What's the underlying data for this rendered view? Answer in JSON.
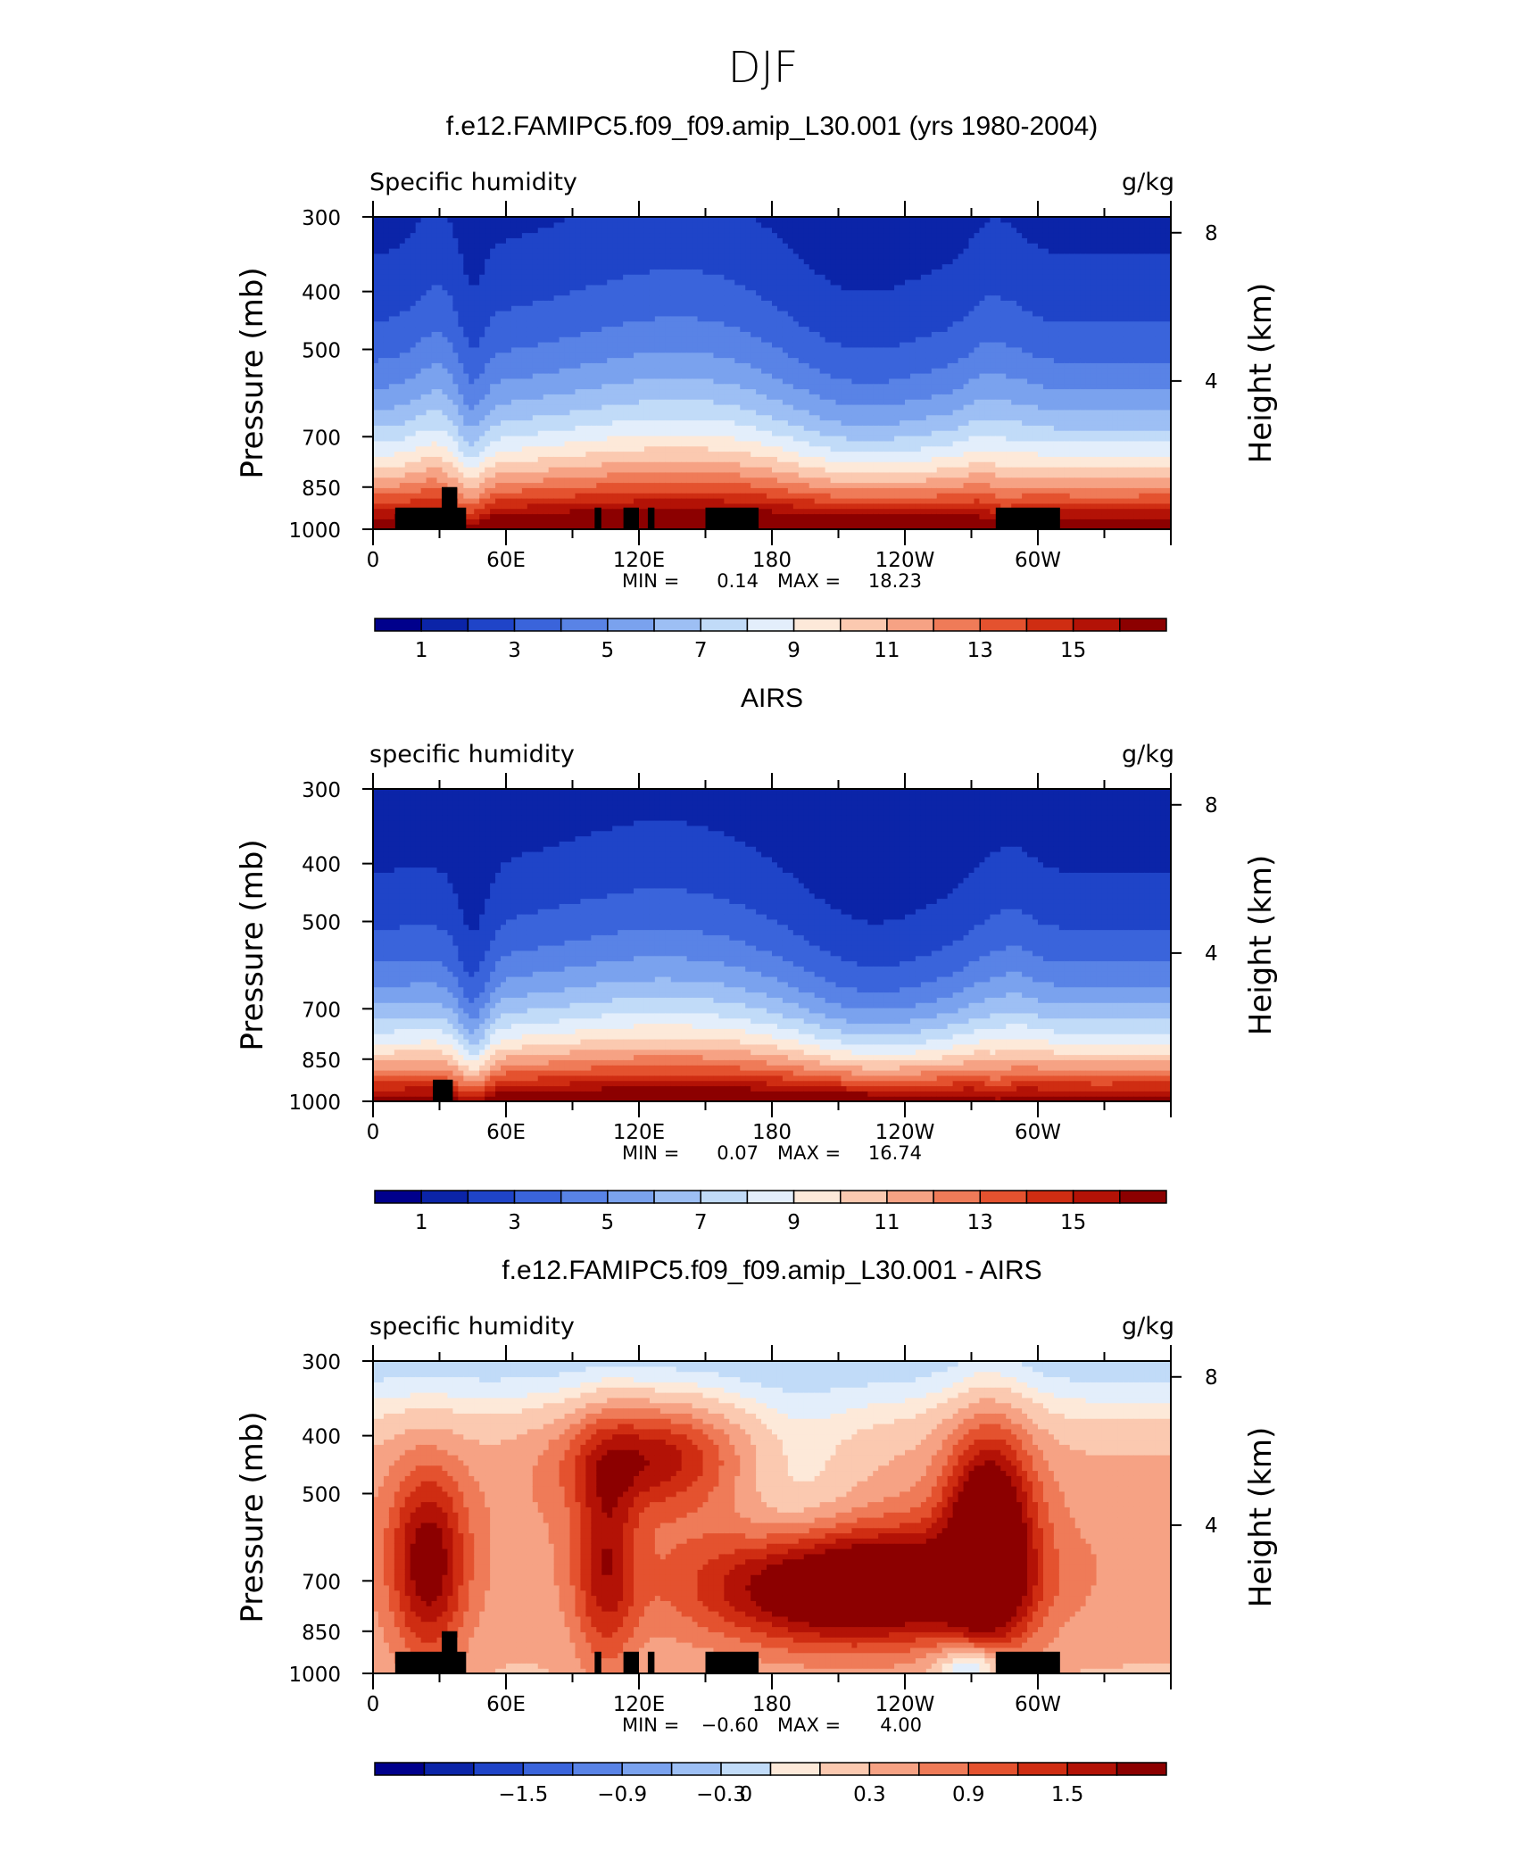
{
  "figure_title": "DJF",
  "colors": {
    "land": "#000000",
    "frame": "#000000",
    "palette": [
      "#00008c",
      "#0b24a8",
      "#1f44c8",
      "#3a64db",
      "#5983e6",
      "#7aa2ee",
      "#9dbff4",
      "#c1dbf8",
      "#e3eefb",
      "#fde9d9",
      "#fbc9b0",
      "#f6a284",
      "#ef7b58",
      "#e4522f",
      "#cf2d12",
      "#b31206",
      "#8c0000"
    ]
  },
  "chart_data": [
    {
      "type": "heatmap",
      "title": "f.e12.FAMIPC5.f09_f09.amip_L30.001 (yrs 1980-2004)",
      "left_string": "Specific humidity",
      "right_string": "g/kg",
      "ylabel": "Pressure (mb)",
      "ylabel_right": "Height (km)",
      "y_ticks": [
        "300",
        "400",
        "500",
        "700",
        "850",
        "1000"
      ],
      "y_ticks_right": [
        "8",
        "4"
      ],
      "x_ticks": [
        "0",
        "60E",
        "120E",
        "180",
        "120W",
        "60W"
      ],
      "stats": {
        "min_label": "MIN =",
        "min": "0.14",
        "max_label": "MAX =",
        "max": "18.23"
      },
      "colorbar": {
        "labels": [
          "1",
          "3",
          "5",
          "7",
          "9",
          "11",
          "13",
          "15"
        ],
        "levels": [
          0,
          1,
          2,
          3,
          4,
          5,
          6,
          7,
          8,
          9,
          10,
          11,
          12,
          13,
          14,
          15,
          16
        ]
      },
      "xlim": [
        0,
        360
      ],
      "ylim": [
        1000,
        300
      ],
      "land_mask": [
        [
          10,
          42,
          920
        ],
        [
          31,
          38,
          850
        ],
        [
          100,
          103,
          920
        ],
        [
          113,
          120,
          920
        ],
        [
          124,
          127,
          920
        ],
        [
          150,
          174,
          920
        ],
        [
          281,
          310,
          920
        ]
      ]
    },
    {
      "type": "heatmap",
      "title": "AIRS",
      "left_string": "specific humidity",
      "right_string": "g/kg",
      "ylabel": "Pressure (mb)",
      "ylabel_right": "Height (km)",
      "y_ticks": [
        "300",
        "400",
        "500",
        "700",
        "850",
        "1000"
      ],
      "y_ticks_right": [
        "8",
        "4"
      ],
      "x_ticks": [
        "0",
        "60E",
        "120E",
        "180",
        "120W",
        "60W"
      ],
      "stats": {
        "min_label": "MIN =",
        "min": "0.07",
        "max_label": "MAX =",
        "max": "16.74"
      },
      "colorbar": {
        "labels": [
          "1",
          "3",
          "5",
          "7",
          "9",
          "11",
          "13",
          "15"
        ],
        "levels": [
          0,
          1,
          2,
          3,
          4,
          5,
          6,
          7,
          8,
          9,
          10,
          11,
          12,
          13,
          14,
          15,
          16
        ]
      },
      "xlim": [
        0,
        360
      ],
      "ylim": [
        1000,
        300
      ],
      "land_mask": [
        [
          27,
          36,
          920
        ]
      ]
    },
    {
      "type": "heatmap",
      "title": "f.e12.FAMIPC5.f09_f09.amip_L30.001 - AIRS",
      "left_string": "specific humidity",
      "right_string": "g/kg",
      "ylabel": "Pressure (mb)",
      "ylabel_right": "Height (km)",
      "y_ticks": [
        "300",
        "400",
        "500",
        "700",
        "850",
        "1000"
      ],
      "y_ticks_right": [
        "8",
        "4"
      ],
      "x_ticks": [
        "0",
        "60E",
        "120E",
        "180",
        "120W",
        "60W"
      ],
      "stats": {
        "min_label": "MIN =",
        "min": "−0.60",
        "max_label": "MAX =",
        "max": "4.00"
      },
      "colorbar": {
        "labels": [
          "−1.5",
          "−0.9",
          "−0.3",
          "0",
          "0.3",
          "0.9",
          "1.5"
        ],
        "levels": [
          -2.1,
          -1.8,
          -1.5,
          -1.2,
          -0.9,
          -0.6,
          -0.3,
          -0.1,
          0.1,
          0.3,
          0.6,
          0.9,
          1.2,
          1.5,
          1.8,
          2.1
        ]
      },
      "xlim": [
        0,
        360
      ],
      "ylim": [
        1000,
        300
      ],
      "land_mask": [
        [
          10,
          42,
          920
        ],
        [
          31,
          38,
          850
        ],
        [
          100,
          103,
          920
        ],
        [
          113,
          120,
          920
        ],
        [
          124,
          127,
          920
        ],
        [
          150,
          174,
          920
        ],
        [
          281,
          310,
          920
        ]
      ]
    }
  ]
}
